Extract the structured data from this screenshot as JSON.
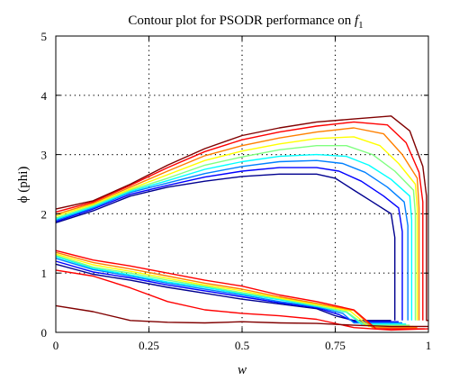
{
  "chart_data": {
    "type": "contour",
    "title": "Contour plot for PSODR performance on ",
    "title_math": "f",
    "title_math_sub": "1",
    "xlabel": "w",
    "ylabel": "ϕ (phi)",
    "xlim": [
      0,
      1
    ],
    "ylim": [
      0,
      5
    ],
    "xticks": [
      0,
      0.25,
      0.5,
      0.75,
      1
    ],
    "xtick_labels": [
      "0",
      "0.25",
      "0.5",
      "0.75",
      "1"
    ],
    "yticks": [
      0,
      1,
      2,
      3,
      4,
      5
    ],
    "ytick_labels": [
      "0",
      "1",
      "2",
      "3",
      "4",
      "5"
    ],
    "grid": true,
    "colormap": [
      "#00008f",
      "#0000ff",
      "#0080ff",
      "#00ffff",
      "#80ff80",
      "#ffff00",
      "#ff8000",
      "#ff0000",
      "#800000"
    ],
    "upper_contours": [
      {
        "color": "#00008f",
        "points": [
          [
            0,
            1.85
          ],
          [
            0.1,
            2.05
          ],
          [
            0.2,
            2.3
          ],
          [
            0.3,
            2.45
          ],
          [
            0.4,
            2.55
          ],
          [
            0.5,
            2.63
          ],
          [
            0.6,
            2.67
          ],
          [
            0.7,
            2.67
          ],
          [
            0.75,
            2.6
          ],
          [
            0.8,
            2.4
          ],
          [
            0.85,
            2.2
          ],
          [
            0.9,
            2.0
          ],
          [
            0.91,
            1.6
          ],
          [
            0.91,
            0.2
          ]
        ]
      },
      {
        "color": "#0000ff",
        "points": [
          [
            0,
            1.87
          ],
          [
            0.1,
            2.08
          ],
          [
            0.2,
            2.33
          ],
          [
            0.3,
            2.48
          ],
          [
            0.4,
            2.62
          ],
          [
            0.5,
            2.72
          ],
          [
            0.6,
            2.78
          ],
          [
            0.7,
            2.78
          ],
          [
            0.76,
            2.72
          ],
          [
            0.82,
            2.55
          ],
          [
            0.88,
            2.3
          ],
          [
            0.92,
            2.1
          ],
          [
            0.93,
            1.7
          ],
          [
            0.93,
            0.2
          ]
        ]
      },
      {
        "color": "#0080ff",
        "points": [
          [
            0,
            1.89
          ],
          [
            0.1,
            2.1
          ],
          [
            0.2,
            2.36
          ],
          [
            0.3,
            2.52
          ],
          [
            0.4,
            2.68
          ],
          [
            0.5,
            2.8
          ],
          [
            0.6,
            2.88
          ],
          [
            0.7,
            2.9
          ],
          [
            0.77,
            2.85
          ],
          [
            0.83,
            2.7
          ],
          [
            0.89,
            2.45
          ],
          [
            0.935,
            2.2
          ],
          [
            0.945,
            1.8
          ],
          [
            0.945,
            0.2
          ]
        ]
      },
      {
        "color": "#00ffff",
        "points": [
          [
            0,
            1.91
          ],
          [
            0.1,
            2.12
          ],
          [
            0.2,
            2.38
          ],
          [
            0.3,
            2.56
          ],
          [
            0.4,
            2.75
          ],
          [
            0.5,
            2.88
          ],
          [
            0.6,
            2.97
          ],
          [
            0.7,
            3.0
          ],
          [
            0.78,
            2.97
          ],
          [
            0.84,
            2.82
          ],
          [
            0.9,
            2.58
          ],
          [
            0.95,
            2.3
          ],
          [
            0.955,
            1.9
          ],
          [
            0.955,
            0.2
          ]
        ]
      },
      {
        "color": "#80ff80",
        "points": [
          [
            0,
            1.93
          ],
          [
            0.1,
            2.14
          ],
          [
            0.2,
            2.4
          ],
          [
            0.3,
            2.6
          ],
          [
            0.4,
            2.82
          ],
          [
            0.5,
            2.96
          ],
          [
            0.6,
            3.08
          ],
          [
            0.7,
            3.15
          ],
          [
            0.78,
            3.15
          ],
          [
            0.85,
            3.0
          ],
          [
            0.91,
            2.72
          ],
          [
            0.96,
            2.4
          ],
          [
            0.965,
            2.0
          ],
          [
            0.965,
            0.2
          ]
        ]
      },
      {
        "color": "#ffff00",
        "points": [
          [
            0,
            1.96
          ],
          [
            0.1,
            2.16
          ],
          [
            0.2,
            2.42
          ],
          [
            0.3,
            2.66
          ],
          [
            0.4,
            2.9
          ],
          [
            0.5,
            3.06
          ],
          [
            0.6,
            3.18
          ],
          [
            0.7,
            3.27
          ],
          [
            0.8,
            3.3
          ],
          [
            0.87,
            3.15
          ],
          [
            0.92,
            2.85
          ],
          [
            0.965,
            2.5
          ],
          [
            0.97,
            2.1
          ],
          [
            0.97,
            0.2
          ]
        ]
      },
      {
        "color": "#ff8000",
        "points": [
          [
            0,
            1.99
          ],
          [
            0.1,
            2.18
          ],
          [
            0.2,
            2.45
          ],
          [
            0.3,
            2.72
          ],
          [
            0.4,
            2.98
          ],
          [
            0.5,
            3.15
          ],
          [
            0.6,
            3.28
          ],
          [
            0.7,
            3.38
          ],
          [
            0.8,
            3.45
          ],
          [
            0.88,
            3.35
          ],
          [
            0.93,
            3.0
          ],
          [
            0.97,
            2.6
          ],
          [
            0.975,
            2.1
          ],
          [
            0.975,
            0.2
          ]
        ]
      },
      {
        "color": "#ff0000",
        "points": [
          [
            0,
            2.03
          ],
          [
            0.1,
            2.2
          ],
          [
            0.2,
            2.48
          ],
          [
            0.3,
            2.78
          ],
          [
            0.4,
            3.05
          ],
          [
            0.5,
            3.25
          ],
          [
            0.6,
            3.38
          ],
          [
            0.7,
            3.48
          ],
          [
            0.8,
            3.55
          ],
          [
            0.89,
            3.5
          ],
          [
            0.94,
            3.2
          ],
          [
            0.975,
            2.7
          ],
          [
            0.985,
            2.2
          ],
          [
            0.985,
            0.2
          ]
        ]
      },
      {
        "color": "#800000",
        "points": [
          [
            0,
            2.08
          ],
          [
            0.1,
            2.22
          ],
          [
            0.2,
            2.5
          ],
          [
            0.3,
            2.82
          ],
          [
            0.4,
            3.1
          ],
          [
            0.5,
            3.32
          ],
          [
            0.6,
            3.45
          ],
          [
            0.7,
            3.55
          ],
          [
            0.8,
            3.6
          ],
          [
            0.9,
            3.65
          ],
          [
            0.95,
            3.4
          ],
          [
            0.985,
            2.8
          ],
          [
            0.995,
            2.3
          ],
          [
            0.995,
            0.2
          ],
          [
            1,
            0.2
          ]
        ]
      }
    ],
    "lower_contours": [
      {
        "color": "#00008f",
        "points": [
          [
            0,
            1.15
          ],
          [
            0.1,
            0.98
          ],
          [
            0.2,
            0.88
          ],
          [
            0.3,
            0.76
          ],
          [
            0.4,
            0.66
          ],
          [
            0.5,
            0.56
          ],
          [
            0.6,
            0.48
          ],
          [
            0.7,
            0.4
          ],
          [
            0.75,
            0.28
          ],
          [
            0.8,
            0.2
          ],
          [
            0.9,
            0.2
          ]
        ]
      },
      {
        "color": "#0000ff",
        "points": [
          [
            0,
            1.2
          ],
          [
            0.1,
            1.02
          ],
          [
            0.2,
            0.92
          ],
          [
            0.3,
            0.8
          ],
          [
            0.4,
            0.7
          ],
          [
            0.5,
            0.6
          ],
          [
            0.6,
            0.5
          ],
          [
            0.7,
            0.42
          ],
          [
            0.76,
            0.3
          ],
          [
            0.8,
            0.18
          ],
          [
            0.92,
            0.18
          ]
        ]
      },
      {
        "color": "#0080ff",
        "points": [
          [
            0,
            1.25
          ],
          [
            0.1,
            1.06
          ],
          [
            0.2,
            0.95
          ],
          [
            0.3,
            0.83
          ],
          [
            0.4,
            0.73
          ],
          [
            0.5,
            0.63
          ],
          [
            0.6,
            0.52
          ],
          [
            0.7,
            0.43
          ],
          [
            0.77,
            0.32
          ],
          [
            0.8,
            0.16
          ],
          [
            0.93,
            0.16
          ]
        ]
      },
      {
        "color": "#00ffff",
        "points": [
          [
            0,
            1.28
          ],
          [
            0.1,
            1.08
          ],
          [
            0.2,
            0.97
          ],
          [
            0.3,
            0.85
          ],
          [
            0.4,
            0.76
          ],
          [
            0.5,
            0.65
          ],
          [
            0.6,
            0.55
          ],
          [
            0.7,
            0.44
          ],
          [
            0.78,
            0.34
          ],
          [
            0.82,
            0.14
          ],
          [
            0.94,
            0.14
          ]
        ]
      },
      {
        "color": "#80ff80",
        "points": [
          [
            0,
            1.3
          ],
          [
            0.1,
            1.1
          ],
          [
            0.2,
            1.0
          ],
          [
            0.3,
            0.88
          ],
          [
            0.4,
            0.78
          ],
          [
            0.5,
            0.67
          ],
          [
            0.6,
            0.57
          ],
          [
            0.7,
            0.45
          ],
          [
            0.78,
            0.35
          ],
          [
            0.83,
            0.12
          ],
          [
            0.95,
            0.12
          ]
        ]
      },
      {
        "color": "#ffff00",
        "points": [
          [
            0,
            1.32
          ],
          [
            0.1,
            1.14
          ],
          [
            0.2,
            1.03
          ],
          [
            0.3,
            0.91
          ],
          [
            0.4,
            0.8
          ],
          [
            0.5,
            0.7
          ],
          [
            0.6,
            0.58
          ],
          [
            0.7,
            0.47
          ],
          [
            0.79,
            0.36
          ],
          [
            0.84,
            0.1
          ],
          [
            0.96,
            0.1
          ]
        ]
      },
      {
        "color": "#ff8000",
        "points": [
          [
            0,
            1.35
          ],
          [
            0.1,
            1.18
          ],
          [
            0.2,
            1.07
          ],
          [
            0.3,
            0.95
          ],
          [
            0.4,
            0.83
          ],
          [
            0.5,
            0.73
          ],
          [
            0.6,
            0.6
          ],
          [
            0.7,
            0.49
          ],
          [
            0.8,
            0.37
          ],
          [
            0.85,
            0.08
          ],
          [
            0.97,
            0.08
          ]
        ]
      },
      {
        "color": "#ff0000",
        "points": [
          [
            0,
            1.38
          ],
          [
            0.1,
            1.22
          ],
          [
            0.2,
            1.12
          ],
          [
            0.3,
            1.0
          ],
          [
            0.4,
            0.88
          ],
          [
            0.5,
            0.78
          ],
          [
            0.6,
            0.63
          ],
          [
            0.7,
            0.52
          ],
          [
            0.8,
            0.38
          ],
          [
            0.86,
            0.06
          ],
          [
            0.99,
            0.06
          ]
        ]
      },
      {
        "color": "#ff0000",
        "points": [
          [
            0,
            1.05
          ],
          [
            0.1,
            0.95
          ],
          [
            0.2,
            0.75
          ],
          [
            0.3,
            0.52
          ],
          [
            0.4,
            0.38
          ],
          [
            0.5,
            0.32
          ],
          [
            0.6,
            0.28
          ],
          [
            0.7,
            0.22
          ],
          [
            0.8,
            0.08
          ],
          [
            0.9,
            0.04
          ],
          [
            1,
            0.06
          ]
        ]
      },
      {
        "color": "#800000",
        "points": [
          [
            0,
            0.45
          ],
          [
            0.1,
            0.35
          ],
          [
            0.2,
            0.2
          ],
          [
            0.3,
            0.17
          ],
          [
            0.4,
            0.16
          ],
          [
            0.5,
            0.18
          ],
          [
            0.6,
            0.16
          ],
          [
            0.7,
            0.15
          ],
          [
            0.8,
            0.12
          ],
          [
            0.9,
            0.1
          ],
          [
            1,
            0.1
          ]
        ]
      }
    ]
  }
}
